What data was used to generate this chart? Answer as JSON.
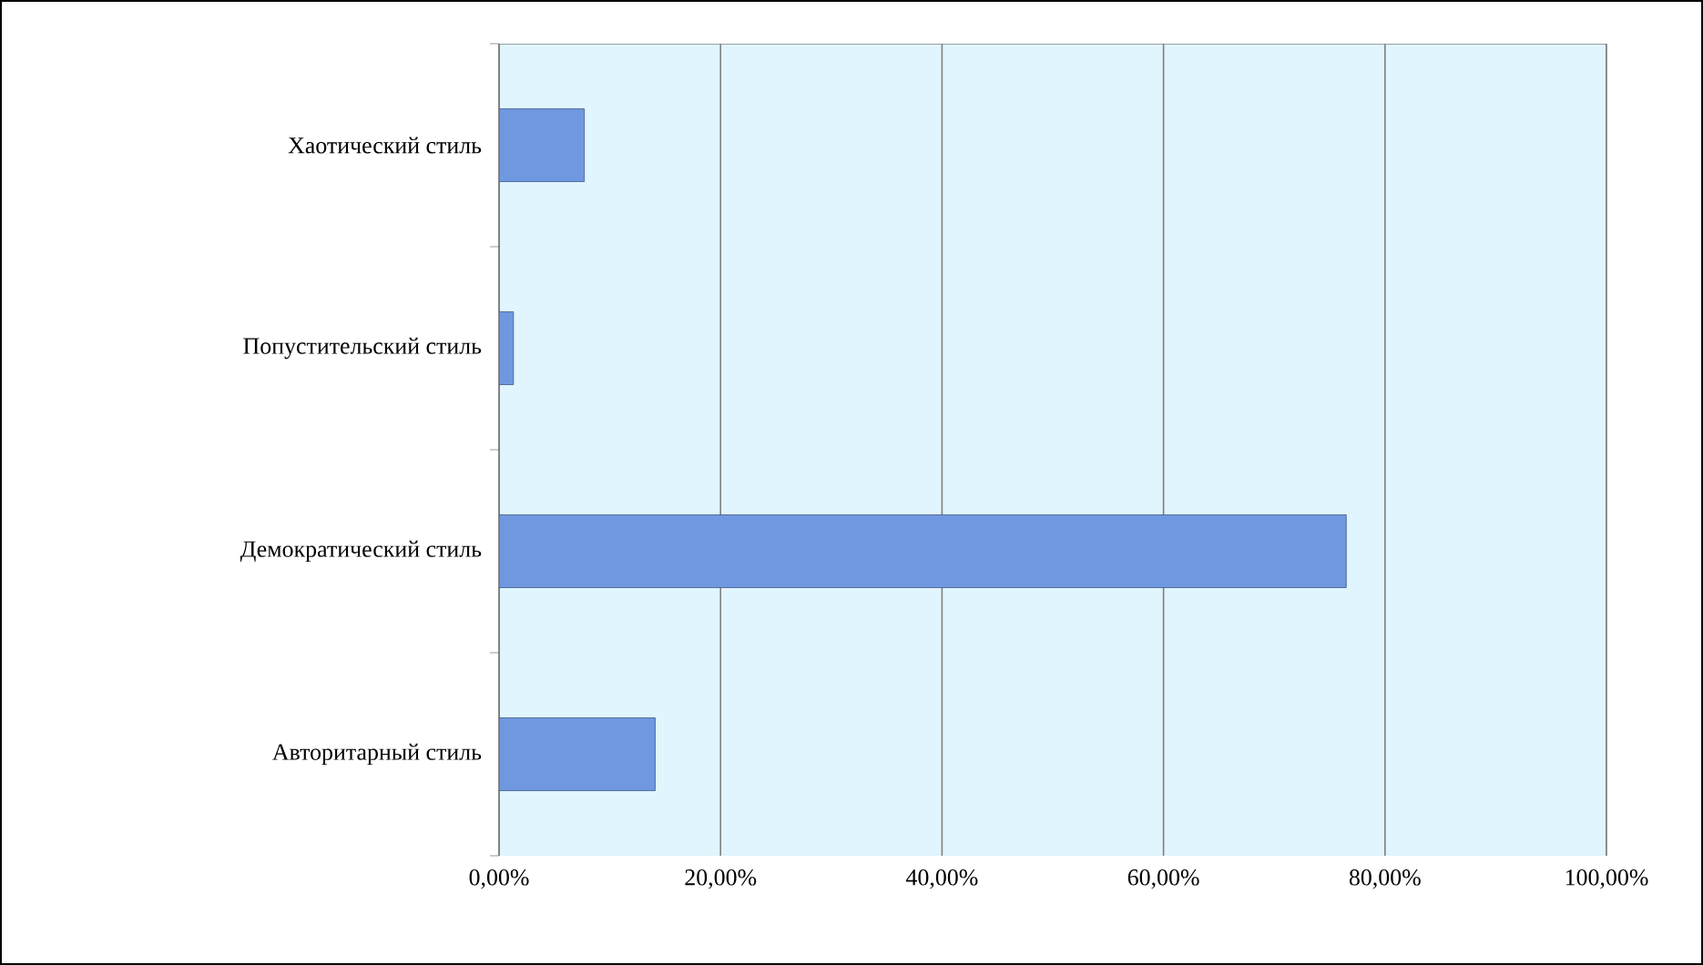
{
  "chart_data": {
    "type": "bar",
    "orientation": "horizontal",
    "categories": [
      "Хаотический стиль",
      "Попустительский стиль",
      "Демократический стиль",
      "Авторитарный стиль"
    ],
    "values": [
      7.7,
      1.3,
      76.5,
      14.1
    ],
    "color": "#6f98e0",
    "xlim": [
      0,
      100
    ],
    "xticks": [
      {
        "value": 0,
        "label": "0,00%"
      },
      {
        "value": 20,
        "label": "20,00%"
      },
      {
        "value": 40,
        "label": "40,00%"
      },
      {
        "value": 60,
        "label": "60,00%"
      },
      {
        "value": 80,
        "label": "80,00%"
      },
      {
        "value": 100,
        "label": "100,00%"
      }
    ],
    "grid": "x"
  }
}
